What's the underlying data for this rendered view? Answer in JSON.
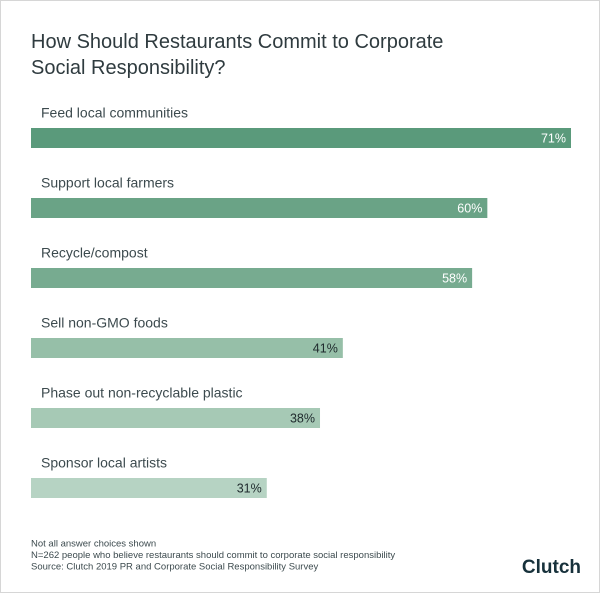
{
  "chart_data": {
    "type": "bar",
    "orientation": "horizontal",
    "title": "How Should Restaurants Commit to Corporate Social Responsibility?",
    "categories": [
      "Feed local communities",
      "Support local farmers",
      "Recycle/compost",
      "Sell non-GMO foods",
      "Phase out non-recyclable plastic",
      "Sponsor local artists"
    ],
    "values": [
      71,
      60,
      58,
      41,
      38,
      31
    ],
    "value_labels": [
      "71%",
      "60%",
      "58%",
      "41%",
      "38%",
      "31%"
    ],
    "colors": [
      "#5a9a7b",
      "#6aa386",
      "#77ab90",
      "#96bfa8",
      "#a6c9b5",
      "#b6d3c3"
    ],
    "notes": [
      "Not all answer choices shown",
      "N=262 people who believe restaurants should commit to corporate social responsibility",
      "Source: Clutch 2019 PR and Corporate Social Responsibility Survey"
    ],
    "brand": "Clutch"
  }
}
